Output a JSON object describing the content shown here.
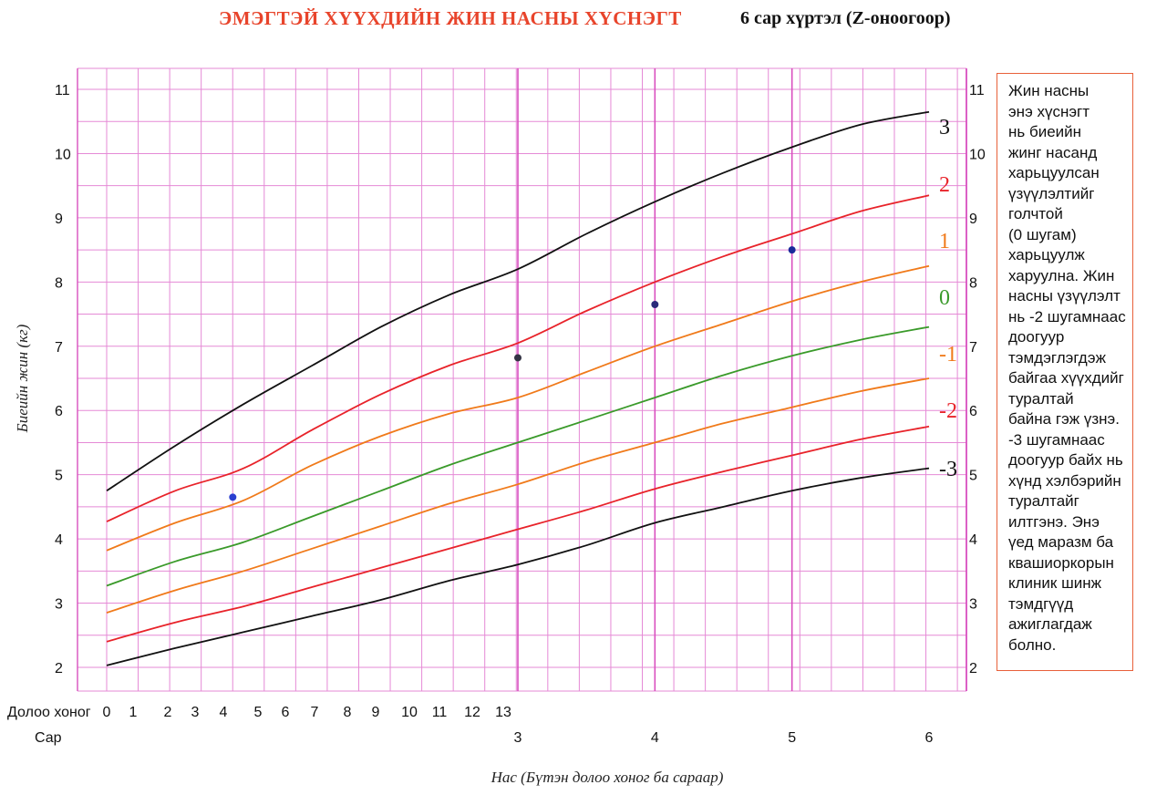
{
  "title": "ЭМЭГТЭЙ ХҮҮХДИЙН ЖИН НАСНЫ ХҮСНЭГТ",
  "subtitle": "6 сар хүртэл (Z-оноогоор)",
  "note_lines": [
    "Жин насны",
    "энэ хүснэгт",
    "нь биеийн",
    "жинг насанд",
    "харьцуулсан",
    "үзүүлэлтийг",
    "голчтой",
    "(0 шугам)",
    "харьцуулж",
    "харуулна. Жин",
    "насны үзүүлэлт",
    "нь -2 шугамнаас",
    "доогуур",
    "тэмдэглэгдэж",
    "байгаа хүүхдийг",
    "туралтай",
    "байна гэж үзнэ.",
    "-3 шугамнаас",
    "доогуур байх нь",
    "хүнд хэлбэрийн",
    "туралтайг",
    "илтгэнэ. Энэ",
    "үед маразм ба",
    "квашиоркорын",
    "клиник шинж",
    "тэмдгүүд",
    "ажиглагдаж",
    "болно."
  ],
  "chart_data": {
    "type": "line",
    "ylabel": "Биеийн жин (кг)",
    "xlabel": "Нас (Бүтэн долоо хоног ба сараар)",
    "x_row_labels": {
      "weeks": "Долоо хоног",
      "months": "Сар"
    },
    "week_ticks": [
      "0",
      "1",
      "2",
      "3",
      "4",
      "5",
      "6",
      "7",
      "8",
      "9",
      "10",
      "11",
      "12",
      "13"
    ],
    "month_ticks": [
      "3",
      "4",
      "5",
      "6"
    ],
    "y_ticks": [
      "2",
      "3",
      "4",
      "5",
      "6",
      "7",
      "8",
      "9",
      "10",
      "11"
    ],
    "ylim": [
      2,
      11
    ],
    "xlim_months": [
      0,
      6
    ],
    "grid": true,
    "x_months": [
      0,
      0.5,
      1,
      1.5,
      2,
      2.5,
      3,
      3.5,
      4,
      4.5,
      5,
      5.5,
      6
    ],
    "series": [
      {
        "name": "3",
        "color": "#111111",
        "values": [
          4.75,
          5.45,
          6.1,
          6.7,
          7.3,
          7.8,
          8.2,
          8.75,
          9.25,
          9.7,
          10.1,
          10.45,
          10.65
        ]
      },
      {
        "name": "2",
        "color": "#e8232a",
        "values": [
          4.27,
          4.75,
          5.1,
          5.7,
          6.25,
          6.7,
          7.05,
          7.55,
          8.0,
          8.4,
          8.75,
          9.1,
          9.35
        ]
      },
      {
        "name": "1",
        "color": "#f07a1a",
        "values": [
          3.82,
          4.25,
          4.6,
          5.15,
          5.6,
          5.95,
          6.2,
          6.6,
          7.0,
          7.35,
          7.7,
          8.0,
          8.25
        ]
      },
      {
        "name": "0",
        "color": "#3a9a2a",
        "values": [
          3.27,
          3.65,
          3.95,
          4.35,
          4.75,
          5.15,
          5.5,
          5.85,
          6.2,
          6.55,
          6.85,
          7.1,
          7.3
        ]
      },
      {
        "name": "-1",
        "color": "#f07a1a",
        "values": [
          2.85,
          3.2,
          3.5,
          3.85,
          4.2,
          4.55,
          4.85,
          5.2,
          5.5,
          5.8,
          6.05,
          6.3,
          6.5
        ]
      },
      {
        "name": "-2",
        "color": "#e8232a",
        "values": [
          2.4,
          2.7,
          2.95,
          3.25,
          3.55,
          3.85,
          4.15,
          4.45,
          4.78,
          5.05,
          5.3,
          5.55,
          5.75
        ]
      },
      {
        "name": "-3",
        "color": "#111111",
        "values": [
          2.03,
          2.3,
          2.55,
          2.8,
          3.05,
          3.35,
          3.6,
          3.9,
          4.25,
          4.5,
          4.75,
          4.95,
          5.1
        ]
      }
    ],
    "points": [
      {
        "x_months": 0.92,
        "y": 4.65,
        "color": "#2a3fd0"
      },
      {
        "x_months": 3.0,
        "y": 6.82,
        "color": "#333344"
      },
      {
        "x_months": 4.0,
        "y": 7.65,
        "color": "#2a2a7a"
      },
      {
        "x_months": 5.0,
        "y": 8.5,
        "color": "#1a2a9a"
      }
    ]
  }
}
